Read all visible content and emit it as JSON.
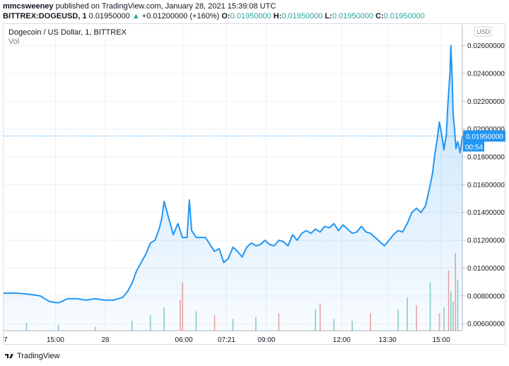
{
  "header": {
    "publisher_line": "mmcsweeney published on TradingView.com, January 28, 2021 15:39:08 UTC",
    "publisher_name": "mmcsweeney",
    "symbol": "BITTREX:DOGEUSD, 1",
    "ohlc_prefix": "0.01950000",
    "change": "+0.01200000 (+160%)",
    "o_label": "O:",
    "o_value": "0.01950000",
    "h_label": "H:",
    "h_value": "0.01950000",
    "l_label": "L:",
    "l_value": "0.01950000",
    "c_label": "C:",
    "c_value": "0.01950000",
    "up_arrow": "▲"
  },
  "legend": {
    "title": "Dogecoin / US Dollar, 1, BITTREX",
    "vol": "Vol"
  },
  "currency_badge": "USD",
  "price_badge": "0.01950000",
  "countdown_badge": "00:54",
  "brand": "TradingView",
  "colors": {
    "line": "#2196f3",
    "area_top": "#2196f3",
    "up_volume": "#26a69a",
    "down_volume": "#ef5350",
    "grid": "#eef0f4",
    "price_label": "#2196f3"
  },
  "chart_data": {
    "type": "area",
    "symbol": "DOGEUSD",
    "xlabel": "",
    "ylabel": "",
    "ylim": [
      0.0055,
      0.0275
    ],
    "y_ticks": [
      "0.02600000",
      "0.02400000",
      "0.02200000",
      "0.02000000",
      "0.01800000",
      "0.01600000",
      "0.01400000",
      "0.01200000",
      "0.01000000",
      "0.00800000",
      "0.00600000"
    ],
    "y_tick_values": [
      0.026,
      0.024,
      0.022,
      0.02,
      0.018,
      0.016,
      0.014,
      0.012,
      0.01,
      0.008,
      0.006
    ],
    "x_ticks": [
      "7",
      "15:00",
      "28",
      "06:00",
      "07:21",
      "09:00",
      "12:00",
      "13:30",
      "15:00"
    ],
    "x_tick_positions": [
      0.0,
      0.113,
      0.222,
      0.393,
      0.486,
      0.573,
      0.737,
      0.837,
      0.954
    ],
    "last_price": 0.0195,
    "series": [
      {
        "x": [
          0.0,
          0.03,
          0.06,
          0.08,
          0.1,
          0.12,
          0.14,
          0.16,
          0.18,
          0.2,
          0.22,
          0.24,
          0.26,
          0.27,
          0.28,
          0.29,
          0.3,
          0.31,
          0.32,
          0.33,
          0.34,
          0.345,
          0.35,
          0.355,
          0.36,
          0.37,
          0.38,
          0.39,
          0.4,
          0.405,
          0.41,
          0.42,
          0.43,
          0.44,
          0.45,
          0.46,
          0.47,
          0.48,
          0.49,
          0.5,
          0.51,
          0.52,
          0.53,
          0.54,
          0.55,
          0.56,
          0.57,
          0.58,
          0.59,
          0.6,
          0.61,
          0.62,
          0.63,
          0.64,
          0.65,
          0.66,
          0.67,
          0.68,
          0.69,
          0.7,
          0.71,
          0.72,
          0.73,
          0.74,
          0.75,
          0.76,
          0.77,
          0.78,
          0.79,
          0.8,
          0.81,
          0.82,
          0.83,
          0.84,
          0.85,
          0.86,
          0.87,
          0.88,
          0.89,
          0.9,
          0.91,
          0.92,
          0.93,
          0.935,
          0.94,
          0.945,
          0.95,
          0.955,
          0.96,
          0.962,
          0.965,
          0.968,
          0.97,
          0.973,
          0.975,
          0.978,
          0.98,
          0.983,
          0.986,
          0.99,
          0.995,
          1.0
        ],
        "values": [
          0.0082,
          0.0082,
          0.0081,
          0.008,
          0.0076,
          0.0075,
          0.0078,
          0.0078,
          0.0077,
          0.0078,
          0.0077,
          0.0077,
          0.0079,
          0.0083,
          0.0089,
          0.0098,
          0.0104,
          0.011,
          0.0118,
          0.012,
          0.0129,
          0.0136,
          0.0148,
          0.0142,
          0.0136,
          0.0124,
          0.0132,
          0.0122,
          0.0122,
          0.0149,
          0.0127,
          0.0122,
          0.0122,
          0.0122,
          0.0117,
          0.0112,
          0.0114,
          0.0104,
          0.0107,
          0.0115,
          0.0112,
          0.0108,
          0.0115,
          0.0118,
          0.0116,
          0.0117,
          0.012,
          0.0117,
          0.0116,
          0.012,
          0.0119,
          0.0116,
          0.0124,
          0.012,
          0.0125,
          0.0127,
          0.0125,
          0.0128,
          0.0126,
          0.013,
          0.0129,
          0.0132,
          0.0127,
          0.0131,
          0.0128,
          0.0125,
          0.0126,
          0.013,
          0.0126,
          0.0125,
          0.0122,
          0.0119,
          0.0116,
          0.012,
          0.0124,
          0.0127,
          0.0126,
          0.0132,
          0.014,
          0.0143,
          0.014,
          0.0145,
          0.016,
          0.0168,
          0.0182,
          0.0192,
          0.0205,
          0.0196,
          0.0185,
          0.019,
          0.0195,
          0.0215,
          0.0225,
          0.024,
          0.026,
          0.0235,
          0.021,
          0.02,
          0.0186,
          0.0191,
          0.0183,
          0.0195
        ]
      }
    ],
    "volume": {
      "x": [
        0.05,
        0.12,
        0.2,
        0.28,
        0.32,
        0.35,
        0.385,
        0.39,
        0.42,
        0.46,
        0.5,
        0.55,
        0.6,
        0.68,
        0.69,
        0.72,
        0.76,
        0.8,
        0.86,
        0.88,
        0.9,
        0.93,
        0.95,
        0.96,
        0.97,
        0.975,
        0.98,
        0.985,
        0.99
      ],
      "values": [
        4,
        3,
        2,
        5,
        8,
        12,
        16,
        25,
        10,
        8,
        6,
        7,
        9,
        11,
        14,
        6,
        5,
        9,
        11,
        17,
        13,
        25,
        9,
        12,
        31,
        20,
        15,
        40,
        26
      ],
      "up": [
        true,
        true,
        false,
        true,
        true,
        true,
        false,
        false,
        true,
        false,
        true,
        true,
        false,
        true,
        false,
        true,
        true,
        false,
        true,
        true,
        false,
        true,
        false,
        true,
        false,
        true,
        true,
        false,
        true
      ]
    }
  }
}
